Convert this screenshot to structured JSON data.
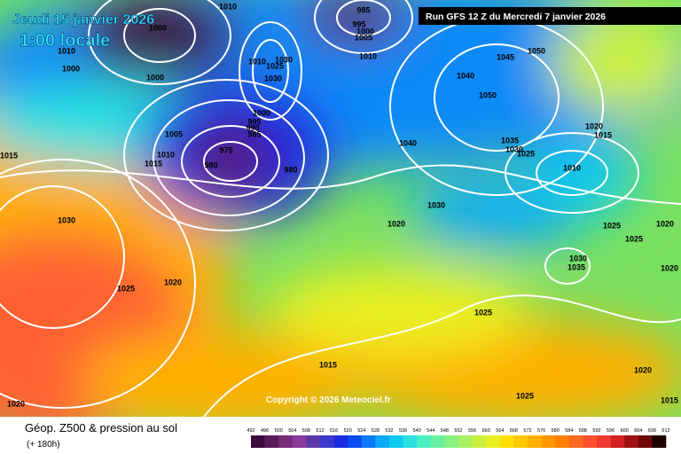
{
  "header": {
    "date": "Jeudi 15 janvier 2026",
    "time": "1:00 locale",
    "run": "Run GFS 12 Z du Mercredi 7 janvier 2026"
  },
  "copyright": "Copyright © 2026 Meteociel.fr",
  "footer": {
    "title": "Géop. Z500 & pression au sol",
    "lead": "(+ 180h)"
  },
  "isobars": [
    1000,
    1010,
    1010,
    1000,
    1000,
    985,
    995,
    1000,
    1005,
    1010,
    1010,
    1025,
    1030,
    1030,
    1000,
    995,
    990,
    985,
    1005,
    1010,
    1015,
    975,
    980,
    980,
    1015,
    1030,
    1025,
    1020,
    1045,
    1050,
    1040,
    1050,
    1040,
    1035,
    1030,
    1025,
    1020,
    1015,
    1010,
    1030,
    1020,
    1025,
    1025,
    1020,
    1030,
    1035,
    1020,
    1025,
    1015,
    1025,
    1020,
    1020,
    1015
  ],
  "colorbar": {
    "ticks": [
      492,
      496,
      500,
      504,
      508,
      512,
      516,
      520,
      524,
      528,
      532,
      536,
      540,
      544,
      548,
      552,
      556,
      560,
      564,
      568,
      572,
      576,
      580,
      584,
      588,
      592,
      596,
      600,
      604,
      608,
      612
    ],
    "colors": [
      "#3c0a3c",
      "#5a1a5a",
      "#7a2a7a",
      "#8a3a9a",
      "#5a3aaa",
      "#3a3acc",
      "#1a2ae0",
      "#0a4af0",
      "#0a7af8",
      "#0aaaf8",
      "#0acaf0",
      "#2ae0e0",
      "#4af0c0",
      "#6af0a0",
      "#8af080",
      "#aaf060",
      "#caf040",
      "#eaf020",
      "#ffe000",
      "#ffc800",
      "#ffb000",
      "#ff9800",
      "#ff8000",
      "#ff6a20",
      "#ff5030",
      "#f03a30",
      "#d02020",
      "#a01010",
      "#700808",
      "#200000"
    ]
  }
}
